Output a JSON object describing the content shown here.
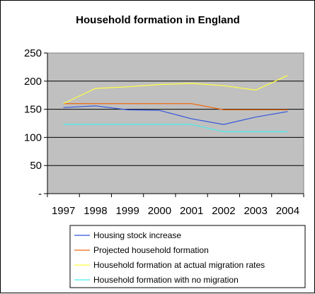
{
  "chart_data": {
    "type": "line",
    "title": "Household formation in England",
    "xlabel": "",
    "ylabel": "",
    "categories": [
      "1997",
      "1998",
      "1999",
      "2000",
      "2001",
      "2002",
      "2003",
      "2004"
    ],
    "ylim": [
      0,
      250
    ],
    "yticks": [
      {
        "value": 0,
        "label": "-"
      },
      {
        "value": 50,
        "label": "50"
      },
      {
        "value": 100,
        "label": "100"
      },
      {
        "value": 150,
        "label": "150"
      },
      {
        "value": 200,
        "label": "200"
      },
      {
        "value": 250,
        "label": "250"
      }
    ],
    "grid": "horizontal",
    "legend_position": "bottom",
    "plot_background": "#c0c0c0",
    "series": [
      {
        "name": "Housing stock increase",
        "color": "#3355dd",
        "values": [
          153,
          156,
          149,
          148,
          133,
          123,
          136,
          146
        ]
      },
      {
        "name": "Projected household formation",
        "color": "#ee6a10",
        "values": [
          160,
          160,
          160,
          160,
          160,
          149,
          149,
          149
        ]
      },
      {
        "name": "Household formation at actual migration rates",
        "color": "#ffff44",
        "values": [
          160,
          187,
          190,
          194,
          196,
          192,
          184,
          210
        ]
      },
      {
        "name": "Household formation with no migration",
        "color": "#44eeee",
        "values": [
          123,
          123,
          123,
          123,
          123,
          110,
          110,
          110
        ]
      }
    ]
  }
}
